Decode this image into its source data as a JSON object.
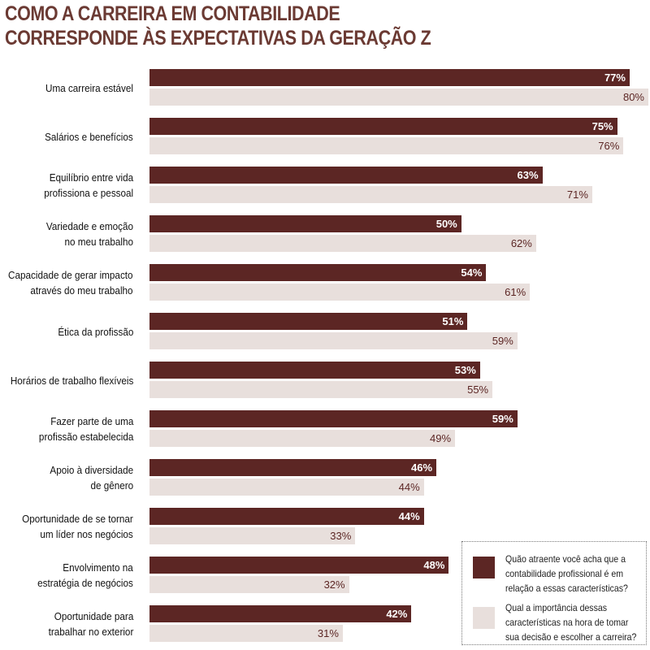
{
  "title_lines": [
    "COMO A CARREIRA EM CONTABILIDADE",
    "CORRESPONDE ÀS EXPECTATIVAS DA GERAÇÃO Z"
  ],
  "colors": {
    "series1": "#5c2624",
    "series2": "#e8dfdc",
    "title": "#6b3a33"
  },
  "chart_data": {
    "type": "bar",
    "orientation": "horizontal",
    "title": "COMO A CARREIRA EM CONTABILIDADE CORRESPONDE ÀS EXPECTATIVAS DA GERAÇÃO Z",
    "xlim": [
      0,
      80
    ],
    "categories": [
      [
        "Uma carreira estável"
      ],
      [
        "Salários e benefícios"
      ],
      [
        "Equilíbrio entre vida",
        "profissiona e pessoal"
      ],
      [
        "Variedade e emoção",
        "no meu trabalho"
      ],
      [
        "Capacidade de gerar impacto",
        "através do meu trabalho"
      ],
      [
        "Ética da profissão"
      ],
      [
        "Horários de trabalho flexíveis"
      ],
      [
        "Fazer parte de uma",
        "profissão estabelecida"
      ],
      [
        "Apoio à diversidade",
        "de gênero"
      ],
      [
        "Oportunidade de se tornar",
        "um líder nos negócios"
      ],
      [
        "Envolvimento na",
        "estratégia de negócios"
      ],
      [
        "Oportunidade para",
        "trabalhar no exterior"
      ]
    ],
    "series": [
      {
        "name": "Quão atraente você acha que a contabilidade profissional é em relação a essas características?",
        "values": [
          77,
          75,
          63,
          50,
          54,
          51,
          53,
          59,
          46,
          44,
          48,
          42
        ],
        "labels": [
          "77%",
          "75%",
          "63%",
          "50%",
          "54%",
          "51%",
          "53%",
          "59%",
          "46%",
          "44%",
          "48%",
          "42%"
        ]
      },
      {
        "name": "Qual a importância dessas características na hora de tomar sua decisão e escolher a carreira?",
        "values": [
          80,
          76,
          71,
          62,
          61,
          59,
          55,
          49,
          44,
          33,
          32,
          31
        ],
        "labels": [
          "80%",
          "76%",
          "71%",
          "62%",
          "61%",
          "59%",
          "55%",
          "49%",
          "44%",
          "33%",
          "32%",
          "31%"
        ]
      }
    ],
    "legend_position": "bottom-right"
  }
}
